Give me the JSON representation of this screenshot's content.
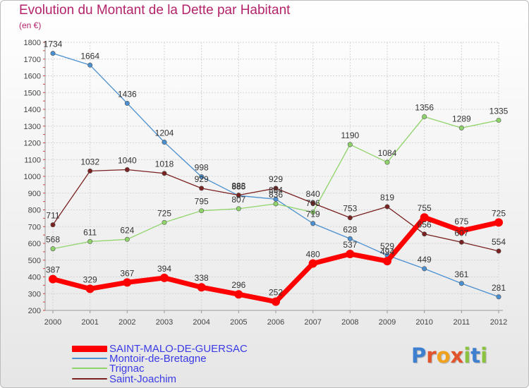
{
  "title": "Evolution du Montant de la Dette par Habitant",
  "subtitle": "(en €)",
  "logo": {
    "letters": [
      "P",
      "r",
      "o",
      "x",
      "i",
      "t",
      "i"
    ],
    "colors": [
      "#3e7fd0",
      "#e2542b",
      "#f0a21e",
      "#e2542b",
      "#8bc340",
      "#3e7fd0",
      "#8bc340"
    ]
  },
  "chart_data": {
    "type": "line",
    "x": [
      "2000",
      "2001",
      "2002",
      "2003",
      "2004",
      "2005",
      "2006",
      "2007",
      "2008",
      "2009",
      "2010",
      "2011",
      "2012"
    ],
    "ylim": [
      200,
      1800
    ],
    "yticks": [
      200,
      300,
      400,
      500,
      600,
      700,
      800,
      900,
      1000,
      1100,
      1200,
      1300,
      1400,
      1500,
      1600,
      1700,
      1800
    ],
    "grid": true,
    "legend_position": "bottom-left",
    "series": [
      {
        "name": "Montoir-de-Bretagne",
        "color": "#4a90d0",
        "values": [
          1734,
          1664,
          1436,
          1204,
          998,
          885,
          864,
          719,
          628,
          529,
          449,
          361,
          281
        ],
        "labels": [
          "1734",
          "1664",
          "1436",
          "1204",
          "998",
          "885",
          "864",
          "719",
          "628",
          "529",
          "449",
          "361",
          "281"
        ]
      },
      {
        "name": "Trignac",
        "color": "#8fd46a",
        "values": [
          568,
          611,
          624,
          725,
          795,
          807,
          836,
          786,
          1190,
          1084,
          1356,
          1289,
          1335
        ],
        "labels": [
          "568",
          "611",
          "624",
          "725",
          "795",
          "807",
          "836",
          "786",
          "1190",
          "1084",
          "1356",
          "1289",
          "1335"
        ]
      },
      {
        "name": "Saint-Joachim",
        "color": "#7a2121",
        "values": [
          711,
          1032,
          1040,
          1018,
          929,
          888,
          929,
          840,
          753,
          819,
          656,
          607,
          554
        ],
        "labels": [
          "711",
          "1032",
          "1040",
          "1018",
          "929",
          "888",
          "929",
          "840",
          "753",
          "819",
          "656",
          "607",
          "554"
        ]
      },
      {
        "name": "SAINT-MALO-DE-GUERSAC",
        "color": "#ff0000",
        "values": [
          387,
          329,
          367,
          394,
          338,
          296,
          252,
          480,
          537,
          494,
          755,
          675,
          725
        ],
        "labels": [
          "387",
          "329",
          "367",
          "394",
          "338",
          "296",
          "252",
          "480",
          "537",
          "494",
          "755",
          "675",
          "725"
        ]
      }
    ],
    "legend": [
      "SAINT-MALO-DE-GUERSAC",
      "Montoir-de-Bretagne",
      "Trignac",
      "Saint-Joachim"
    ]
  }
}
